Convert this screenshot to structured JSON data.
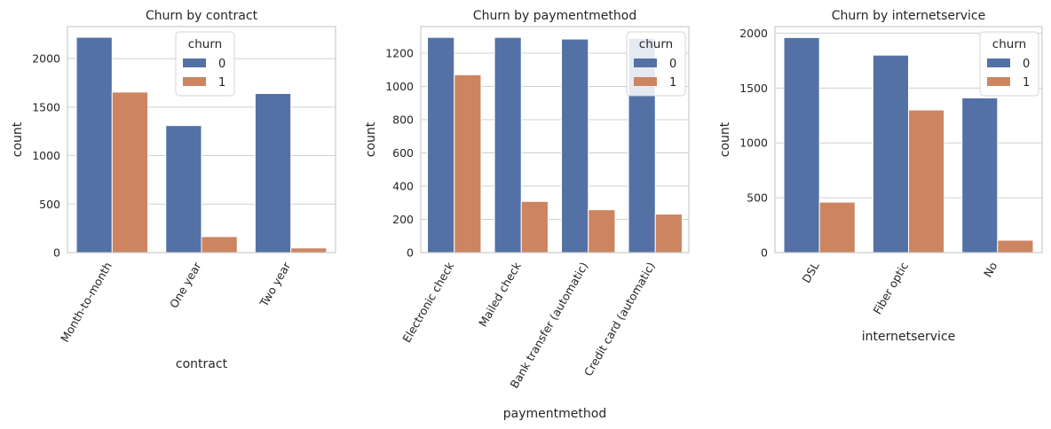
{
  "colors": {
    "series_0": "#5471a6",
    "series_1": "#cc8560",
    "grid": "#cfcfcf",
    "spine": "#cccccc",
    "text": "#262626"
  },
  "chart_data": [
    {
      "type": "bar",
      "title": "Churn by contract",
      "xlabel": "contract",
      "ylabel": "count",
      "categories": [
        "Month-to-month",
        "One year",
        "Two year"
      ],
      "series": [
        {
          "name": "0",
          "values": [
            2220,
            1310,
            1640
          ]
        },
        {
          "name": "1",
          "values": [
            1655,
            165,
            48
          ]
        }
      ],
      "ylim": [
        0,
        2330
      ],
      "yticks": [
        0,
        500,
        1000,
        1500,
        2000
      ],
      "tick_rotation": 60,
      "grid": true,
      "legend": {
        "title": "churn",
        "placement": "upper-center"
      }
    },
    {
      "type": "bar",
      "title": "Churn by paymentmethod",
      "xlabel": "paymentmethod",
      "ylabel": "count",
      "categories": [
        "Electronic check",
        "Mailed check",
        "Bank transfer (automatic)",
        "Credit card (automatic)"
      ],
      "series": [
        {
          "name": "0",
          "values": [
            1295,
            1295,
            1285,
            1290
          ]
        },
        {
          "name": "1",
          "values": [
            1070,
            308,
            258,
            232
          ]
        }
      ],
      "ylim": [
        0,
        1360
      ],
      "yticks": [
        0,
        200,
        400,
        600,
        800,
        1000,
        1200
      ],
      "tick_rotation": 60,
      "grid": true,
      "legend": {
        "title": "churn",
        "placement": "top-right"
      }
    },
    {
      "type": "bar",
      "title": "Churn by internetservice",
      "xlabel": "internetservice",
      "ylabel": "count",
      "categories": [
        "DSL",
        "Fiber optic",
        "No"
      ],
      "series": [
        {
          "name": "0",
          "values": [
            1960,
            1800,
            1410
          ]
        },
        {
          "name": "1",
          "values": [
            460,
            1300,
            113
          ]
        }
      ],
      "ylim": [
        0,
        2060
      ],
      "yticks": [
        0,
        500,
        1000,
        1500,
        2000
      ],
      "tick_rotation": 60,
      "grid": true,
      "legend": {
        "title": "churn",
        "placement": "top-right"
      }
    }
  ]
}
